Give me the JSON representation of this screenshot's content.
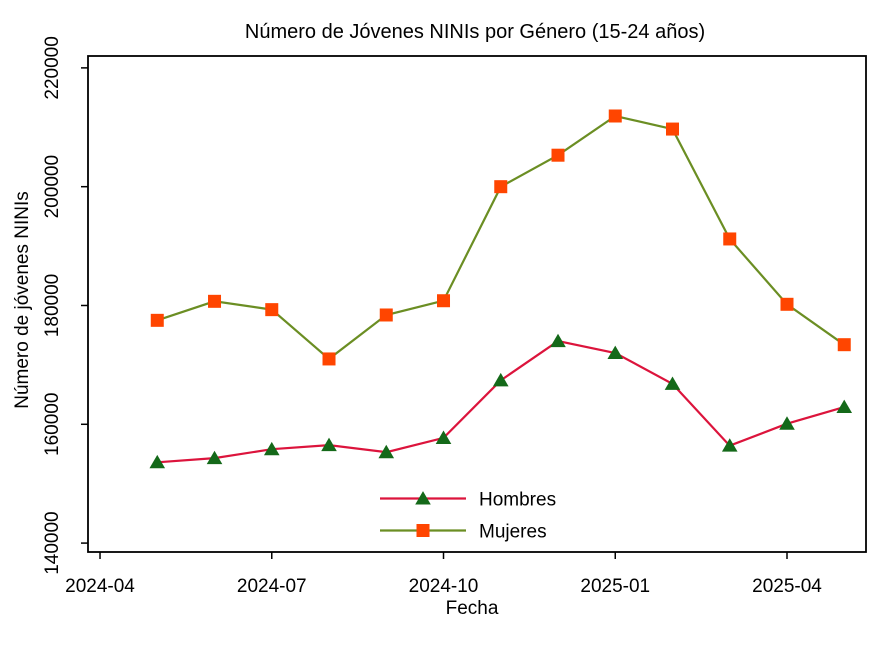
{
  "window": {
    "background": "#ffffff"
  },
  "chart_data": {
    "type": "line",
    "title": "Número de Jóvenes NINIs por Género (15-24 años)",
    "xlabel": "Fecha",
    "ylabel": "Número de jóvenes NINIs",
    "x": [
      "2024-05",
      "2024-06",
      "2024-07",
      "2024-08",
      "2024-09",
      "2024-10",
      "2024-11",
      "2024-12",
      "2025-01",
      "2025-02",
      "2025-03",
      "2025-04",
      "2025-05"
    ],
    "series": [
      {
        "name": "Hombres",
        "line_color": "#dc143c",
        "marker": "triangle-up",
        "marker_color": "#146919",
        "values": [
          153600,
          154300,
          155800,
          156500,
          155300,
          157700,
          167400,
          174000,
          172000,
          166800,
          156400,
          160100,
          162900
        ]
      },
      {
        "name": "Mujeres",
        "line_color": "#6b8e23",
        "marker": "square",
        "marker_color": "#ff4500",
        "values": [
          177500,
          180700,
          179300,
          171000,
          178400,
          180800,
          200000,
          205300,
          211900,
          209700,
          191200,
          180200,
          173400
        ]
      }
    ],
    "x_ticks": [
      "2024-04",
      "2024-07",
      "2024-10",
      "2025-01",
      "2025-04"
    ],
    "y_ticks": [
      140000,
      160000,
      180000,
      200000,
      220000
    ],
    "ylim": [
      138500,
      222000
    ],
    "xlim_months_from_2024_04": [
      -0.21,
      13.38
    ],
    "grid": false,
    "legend": {
      "position": "inside-lower-center",
      "entries": [
        "Hombres",
        "Mujeres"
      ]
    },
    "axis_color": "#000000",
    "text_color": "#000000"
  }
}
